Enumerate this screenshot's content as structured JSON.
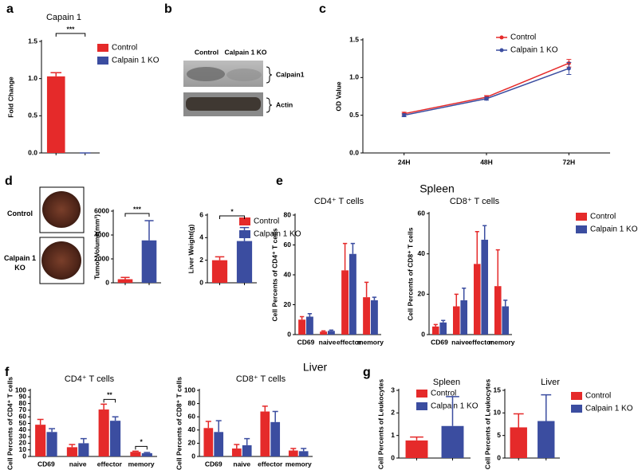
{
  "figure": {
    "panel_labels": [
      "a",
      "b",
      "c",
      "d",
      "e",
      "f",
      "g"
    ],
    "group_titles": [
      "Spleen",
      "Liver"
    ]
  },
  "blot": {
    "lanes": [
      "Control",
      "Calpain 1 KO"
    ],
    "bands": [
      "Calpain1",
      "Actin"
    ]
  },
  "photos": {
    "labels": [
      "Control",
      "Calpain 1 KO"
    ]
  },
  "chart_data": [
    {
      "type": "bar",
      "title": "Capain 1",
      "y_label": "Fold Change",
      "ylim": [
        0,
        1.5
      ],
      "yticks": [
        {
          "value": 0,
          "label": "0.0"
        },
        {
          "value": 0.5,
          "label": "0.5"
        },
        {
          "value": 1,
          "label": "1.0"
        },
        {
          "value": 1.5,
          "label": "1.5"
        }
      ],
      "series": [
        {
          "name": "Control",
          "color": "#e52a2a",
          "values": [
            1.03
          ],
          "errors": [
            0.05
          ]
        },
        {
          "name": "Calpain 1 KO",
          "color": "#3b4da0",
          "values": [
            0
          ],
          "errors": [
            0
          ]
        }
      ],
      "significance": "***",
      "legend": "right"
    },
    {
      "type": "line",
      "y_label": "OD Value",
      "categories": [
        "24H",
        "48H",
        "72H"
      ],
      "ylim": [
        0,
        1.5
      ],
      "yticks": [
        {
          "value": 0,
          "label": "0.0"
        },
        {
          "value": 0.5,
          "label": "0.5"
        },
        {
          "value": 1,
          "label": "1.0"
        },
        {
          "value": 1.5,
          "label": "1.5"
        }
      ],
      "series": [
        {
          "name": "Control",
          "color": "#e52a2a",
          "values": [
            0.52,
            0.74,
            1.19
          ],
          "errors": [
            0.02,
            0.02,
            0.05
          ]
        },
        {
          "name": "Calpain 1 KO",
          "color": "#3b4da0",
          "values": [
            0.5,
            0.72,
            1.12
          ],
          "errors": [
            0.02,
            0.02,
            0.08
          ]
        }
      ],
      "legend": "upper right"
    },
    {
      "type": "bar",
      "y_label": "Tumor Volume(mm³)",
      "ylim": [
        0,
        6000
      ],
      "yticks": [
        0,
        2000,
        4000,
        6000
      ],
      "series": [
        {
          "name": "Control",
          "color": "#e52a2a",
          "values": [
            300
          ],
          "errors": [
            150
          ]
        },
        {
          "name": "Calpain 1 KO",
          "color": "#3b4da0",
          "values": [
            3550
          ],
          "errors": [
            1650
          ]
        }
      ],
      "significance": "***"
    },
    {
      "type": "bar",
      "y_label": "Liver Weight(g)",
      "ylim": [
        0,
        6
      ],
      "yticks": [
        0,
        2,
        4,
        6
      ],
      "series": [
        {
          "name": "Control",
          "color": "#e52a2a",
          "values": [
            2.0
          ],
          "errors": [
            0.3
          ]
        },
        {
          "name": "Calpain 1 KO",
          "color": "#3b4da0",
          "values": [
            3.7
          ],
          "errors": [
            1.2
          ]
        }
      ],
      "significance": "*",
      "legend": "right"
    },
    {
      "type": "bar",
      "title": "CD4⁺ T cells",
      "y_label": "Cell Percents of CD4⁺ T cells",
      "categories": [
        "CD69",
        "naive",
        "effector",
        "memory"
      ],
      "ylim": [
        0,
        80
      ],
      "yticks": [
        0,
        20,
        40,
        60,
        80
      ],
      "series": [
        {
          "name": "Control",
          "color": "#e52a2a",
          "values": [
            10,
            2,
            43,
            25
          ],
          "errors": [
            2,
            0.5,
            18,
            10
          ]
        },
        {
          "name": "Calpain 1 KO",
          "color": "#3b4da0",
          "values": [
            12,
            2.5,
            54,
            23
          ],
          "errors": [
            2,
            0.5,
            7,
            2
          ]
        }
      ]
    },
    {
      "type": "bar",
      "title": "CD8⁺ T cells",
      "y_label": "Cell Percents of CD8⁺ T cells",
      "categories": [
        "CD69",
        "naive",
        "effector",
        "memory"
      ],
      "ylim": [
        0,
        60
      ],
      "yticks": [
        0,
        20,
        40,
        60
      ],
      "series": [
        {
          "name": "Control",
          "color": "#e52a2a",
          "values": [
            4,
            14,
            35,
            24
          ],
          "errors": [
            1,
            6,
            16,
            18
          ]
        },
        {
          "name": "Calpain 1 KO",
          "color": "#3b4da0",
          "values": [
            6,
            17,
            47,
            14
          ],
          "errors": [
            1,
            6,
            7,
            3
          ]
        }
      ],
      "legend": "right"
    },
    {
      "type": "bar",
      "title": "CD4⁺ T cells",
      "y_label": "Cell Percents of CD4⁺ T cells",
      "categories": [
        "CD69",
        "naive",
        "effector",
        "memory"
      ],
      "ylim": [
        0,
        100
      ],
      "yticks": [
        0,
        10,
        20,
        30,
        40,
        50,
        60,
        70,
        80,
        90,
        100
      ],
      "series": [
        {
          "name": "Control",
          "color": "#e52a2a",
          "values": [
            48,
            14,
            71,
            7
          ],
          "errors": [
            8,
            4,
            8,
            1
          ]
        },
        {
          "name": "Calpain 1 KO",
          "color": "#3b4da0",
          "values": [
            37,
            20,
            54,
            5
          ],
          "errors": [
            5,
            7,
            6,
            1
          ]
        }
      ],
      "significance": [
        null,
        null,
        "**",
        "*"
      ]
    },
    {
      "type": "bar",
      "title": "CD8⁺ T cells",
      "y_label": "Cell Percents of CD8⁺ T cells",
      "categories": [
        "CD69",
        "naive",
        "effector",
        "memory"
      ],
      "ylim": [
        0,
        100
      ],
      "yticks": [
        0,
        20,
        40,
        60,
        80,
        100
      ],
      "series": [
        {
          "name": "Control",
          "color": "#e52a2a",
          "values": [
            43,
            12,
            68,
            9
          ],
          "errors": [
            10,
            6,
            8,
            3
          ]
        },
        {
          "name": "Calpain 1 KO",
          "color": "#3b4da0",
          "values": [
            37,
            17,
            52,
            8
          ],
          "errors": [
            17,
            10,
            16,
            4
          ]
        }
      ],
      "legend": "right"
    },
    {
      "type": "bar",
      "title": "Spleen",
      "y_label": "Cell Percents of Leukocytes",
      "ylim": [
        0,
        3
      ],
      "yticks": [
        0,
        1,
        2,
        3
      ],
      "series": [
        {
          "name": "Control",
          "color": "#e52a2a",
          "values": [
            0.78
          ],
          "errors": [
            0.15
          ]
        },
        {
          "name": "Calpain 1 KO",
          "color": "#3b4da0",
          "values": [
            1.42
          ],
          "errors": [
            1.3
          ]
        }
      ]
    },
    {
      "type": "bar",
      "title": "Liver",
      "y_label": "Cell Percents of Leukocytes",
      "ylim": [
        0,
        15
      ],
      "yticks": [
        0,
        5,
        10,
        15
      ],
      "series": [
        {
          "name": "Control",
          "color": "#e52a2a",
          "values": [
            6.8
          ],
          "errors": [
            3
          ]
        },
        {
          "name": "Calpain 1 KO",
          "color": "#3b4da0",
          "values": [
            8.2
          ],
          "errors": [
            5.8
          ]
        }
      ],
      "legend": "right"
    }
  ]
}
